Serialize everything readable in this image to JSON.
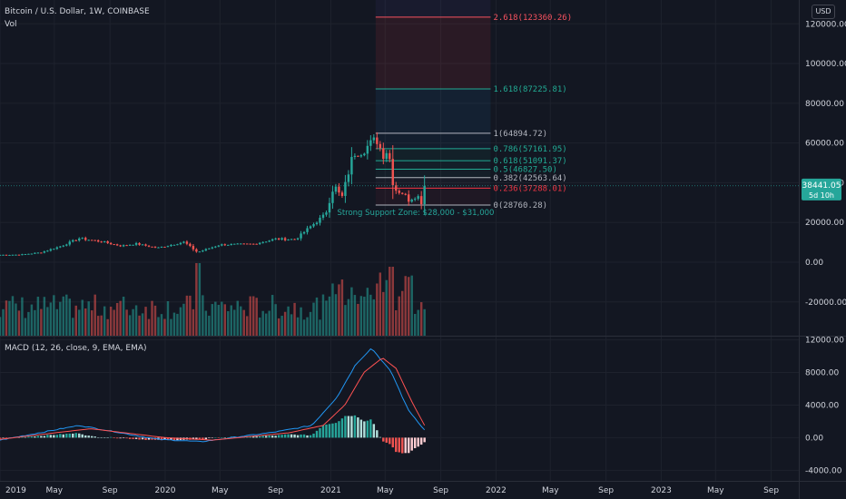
{
  "header": {
    "title": "Bitcoin / U.S. Dollar, 1W, COINBASE",
    "volume_label": "Vol",
    "currency": "USD"
  },
  "macd_label": "MACD (12, 26, close, 9, EMA, EMA)",
  "price_tag": {
    "value": "38441.05",
    "countdown": "5d 10h",
    "color": "#26a69a"
  },
  "support_zone_label": "Strong Support Zone: $28,000 - $31,000",
  "colors": {
    "up": "#26a69a",
    "down": "#ef5350",
    "background": "#131722",
    "grid": "#1e222d",
    "macd": "#2196f3",
    "signal": "#ff5252"
  },
  "chart_data": [
    {
      "type": "candlestick",
      "title": "Bitcoin / U.S. Dollar, 1W, COINBASE",
      "x_ticks": [
        "2019",
        "May",
        "Sep",
        "2020",
        "May",
        "Sep",
        "2021",
        "May",
        "Sep",
        "2022",
        "May",
        "Sep",
        "2023",
        "May",
        "Sep"
      ],
      "x_range": [
        "2019-01-01",
        "2023-11-01"
      ],
      "y_ticks": [
        "120000.00",
        "100000.00",
        "80000.00",
        "60000.00",
        "40000.00",
        "20000.00",
        "0.00",
        "-20000.00"
      ],
      "ylim": [
        -37000,
        132000
      ],
      "price_anchors": [
        {
          "date": "2019-01-01",
          "price": 3700
        },
        {
          "date": "2019-02-15",
          "price": 3800
        },
        {
          "date": "2019-04-01",
          "price": 4900
        },
        {
          "date": "2019-05-15",
          "price": 8000
        },
        {
          "date": "2019-06-25",
          "price": 12000
        },
        {
          "date": "2019-08-15",
          "price": 10300
        },
        {
          "date": "2019-09-25",
          "price": 8200
        },
        {
          "date": "2019-10-28",
          "price": 9300
        },
        {
          "date": "2019-12-15",
          "price": 7200
        },
        {
          "date": "2020-02-12",
          "price": 10200
        },
        {
          "date": "2020-03-12",
          "price": 5000
        },
        {
          "date": "2020-05-01",
          "price": 8800
        },
        {
          "date": "2020-07-15",
          "price": 9200
        },
        {
          "date": "2020-09-01",
          "price": 11700
        },
        {
          "date": "2020-10-15",
          "price": 11500
        },
        {
          "date": "2020-11-20",
          "price": 18500
        },
        {
          "date": "2020-12-20",
          "price": 24000
        },
        {
          "date": "2021-01-08",
          "price": 39000
        },
        {
          "date": "2021-01-25",
          "price": 32000
        },
        {
          "date": "2021-02-20",
          "price": 55000
        },
        {
          "date": "2021-03-10",
          "price": 56000
        },
        {
          "date": "2021-04-12",
          "price": 62000
        },
        {
          "date": "2021-04-26",
          "price": 54000
        },
        {
          "date": "2021-05-08",
          "price": 57000
        },
        {
          "date": "2021-05-20",
          "price": 37000
        },
        {
          "date": "2021-06-08",
          "price": 35000
        },
        {
          "date": "2021-06-22",
          "price": 31500
        },
        {
          "date": "2021-07-10",
          "price": 34000
        },
        {
          "date": "2021-07-21",
          "price": 30000
        },
        {
          "date": "2021-08-01",
          "price": 38441
        }
      ],
      "fibonacci_retracement": {
        "start_date": "2021-04-10",
        "end_date": "2021-12-20",
        "levels": [
          {
            "label": "2.618(123360.26)",
            "price": 123360.26,
            "color": "#f7525f"
          },
          {
            "label": "1.618(87225.81)",
            "price": 87225.81,
            "color": "#22ab94"
          },
          {
            "label": "1(64894.72)",
            "price": 64894.72,
            "color": "#b2b5be"
          },
          {
            "label": "0.786(57161.95)",
            "price": 57161.95,
            "color": "#22ab94"
          },
          {
            "label": "0.618(51091.37)",
            "price": 51091.37,
            "color": "#22ab94"
          },
          {
            "label": "0.5(46827.50)",
            "price": 46827.5,
            "color": "#22ab94"
          },
          {
            "label": "0.382(42563.64)",
            "price": 42563.64,
            "color": "#b2b5be"
          },
          {
            "label": "0.236(37288.01)",
            "price": 37288.01,
            "color": "#f23645"
          },
          {
            "label": "0(28760.28)",
            "price": 28760.28,
            "color": "#b2b5be"
          }
        ]
      },
      "last_price": 38441.05
    },
    {
      "type": "line",
      "title": "MACD (12, 26, close, 9, EMA, EMA)",
      "y_ticks": [
        "12000.00",
        "8000.00",
        "4000.00",
        "0.00",
        "-4000.00"
      ],
      "ylim": [
        -5300,
        12400
      ],
      "series": [
        {
          "values_anchor": [
            {
              "date": "2019-01-01",
              "value": -300
            },
            {
              "date": "2019-06-25",
              "value": 1500
            },
            {
              "date": "2019-12-15",
              "value": -200
            },
            {
              "date": "2020-03-20",
              "value": -500
            },
            {
              "date": "2020-09-01",
              "value": 700
            },
            {
              "date": "2020-11-20",
              "value": 1500
            },
            {
              "date": "2021-01-15",
              "value": 5000
            },
            {
              "date": "2021-02-25",
              "value": 9000
            },
            {
              "date": "2021-04-01",
              "value": 11000
            },
            {
              "date": "2021-05-15",
              "value": 8000
            },
            {
              "date": "2021-06-20",
              "value": 3500
            },
            {
              "date": "2021-08-01",
              "value": 600
            }
          ]
        },
        {
          "values_anchor": [
            {
              "date": "2019-01-01",
              "value": -200
            },
            {
              "date": "2019-07-20",
              "value": 1100
            },
            {
              "date": "2020-01-01",
              "value": 0
            },
            {
              "date": "2020-04-15",
              "value": -300
            },
            {
              "date": "2020-10-01",
              "value": 600
            },
            {
              "date": "2020-12-15",
              "value": 1500
            },
            {
              "date": "2021-02-01",
              "value": 4000
            },
            {
              "date": "2021-03-15",
              "value": 8000
            },
            {
              "date": "2021-04-25",
              "value": 9800
            },
            {
              "date": "2021-05-25",
              "value": 8500
            },
            {
              "date": "2021-07-01",
              "value": 4200
            },
            {
              "date": "2021-08-01",
              "value": 1000
            }
          ]
        }
      ]
    }
  ]
}
